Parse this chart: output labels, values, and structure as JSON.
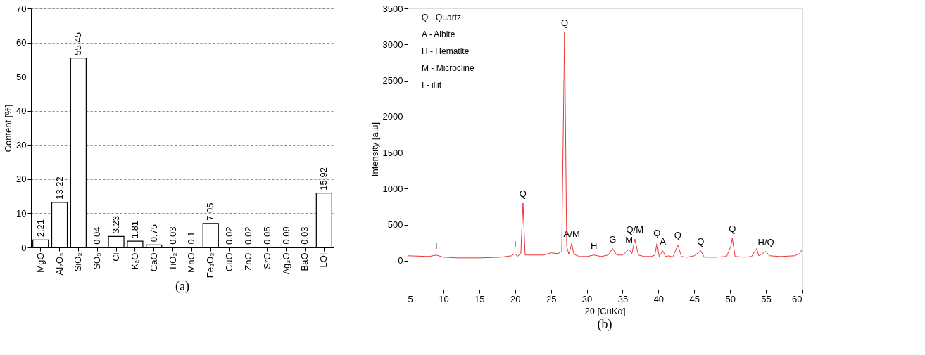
{
  "chart_data": [
    {
      "type": "bar",
      "title": "(a)",
      "ylabel": "Content [%]",
      "categories": [
        "MgO",
        "Al₂O₃",
        "SiO₂",
        "SO₃",
        "Cl",
        "K₂O",
        "CaO",
        "TiO₂",
        "MnO",
        "Fe₂O₃",
        "CuO",
        "ZnO",
        "SrO",
        "Ag₂O",
        "BaO",
        "LOI"
      ],
      "values": [
        2.21,
        13.22,
        55.45,
        0.04,
        3.23,
        1.81,
        0.75,
        0.03,
        0.1,
        7.05,
        0.02,
        0.02,
        0.05,
        0.09,
        0.03,
        15.92
      ],
      "color": "#ffffff",
      "data_labels": true,
      "ylim": [
        0,
        70
      ],
      "yticks": [
        0,
        10,
        20,
        30,
        40,
        50,
        60,
        70
      ],
      "grid": "y"
    },
    {
      "type": "line",
      "title": "(b)",
      "xlabel": "2θ [CuKα]",
      "ylabel": "Intensity [a.u]",
      "x": [
        5,
        8,
        9,
        10,
        12,
        15,
        18,
        19.5,
        20,
        20.3,
        20.8,
        21.1,
        21.4,
        22,
        24,
        25,
        26,
        26.5,
        26.9,
        27.2,
        27.5,
        27.9,
        28.2,
        29,
        30,
        31,
        31.5,
        32,
        33,
        33.6,
        34.2,
        35,
        35.9,
        36.3,
        36.7,
        37.2,
        38,
        39,
        39.5,
        39.8,
        40.1,
        40.6,
        41,
        41.5,
        42,
        42.7,
        43.2,
        44,
        45,
        45.9,
        46.4,
        48,
        49.5,
        50.1,
        50.3,
        50.7,
        52,
        53,
        53.7,
        54,
        55,
        55.5,
        57,
        59,
        59.7,
        60
      ],
      "series": [
        {
          "color": "#ee3333",
          "values": [
            70,
            60,
            80,
            50,
            40,
            40,
            50,
            70,
            100,
            60,
            100,
            800,
            80,
            80,
            80,
            110,
            100,
            130,
            3170,
            200,
            90,
            240,
            90,
            60,
            60,
            80,
            70,
            60,
            80,
            170,
            80,
            80,
            160,
            100,
            300,
            80,
            60,
            60,
            80,
            250,
            60,
            140,
            60,
            70,
            50,
            220,
            60,
            50,
            70,
            140,
            50,
            50,
            60,
            200,
            310,
            60,
            50,
            60,
            170,
            70,
            130,
            70,
            60,
            70,
            100,
            150
          ]
        }
      ],
      "xlim": [
        5,
        60
      ],
      "xticks": [
        5,
        10,
        15,
        20,
        25,
        30,
        35,
        40,
        45,
        50,
        55,
        60
      ],
      "ylim": [
        -400,
        3500
      ],
      "yticks": [
        0,
        500,
        1000,
        1500,
        2000,
        2500,
        3000,
        3500
      ],
      "grid": false,
      "annotations": [
        "Q - Quartz",
        "A - Albite",
        "H - Hematite",
        "M - Microcline",
        "I - illit",
        {
          "text": "I",
          "x": 9,
          "y": 80
        },
        {
          "text": "I",
          "x": 20,
          "y": 100
        },
        {
          "text": "Q",
          "x": 21.1,
          "y": 800
        },
        {
          "text": "Q",
          "x": 26.9,
          "y": 3170
        },
        {
          "text": "A/M",
          "x": 27.9,
          "y": 240
        },
        {
          "text": "H",
          "x": 31,
          "y": 80
        },
        {
          "text": "G",
          "x": 33.6,
          "y": 170
        },
        {
          "text": "M",
          "x": 35.9,
          "y": 160
        },
        {
          "text": "Q/M",
          "x": 36.7,
          "y": 300
        },
        {
          "text": "Q",
          "x": 39.8,
          "y": 250
        },
        {
          "text": "A",
          "x": 40.6,
          "y": 140
        },
        {
          "text": "Q",
          "x": 42.7,
          "y": 220
        },
        {
          "text": "Q",
          "x": 45.9,
          "y": 140
        },
        {
          "text": "Q",
          "x": 50.3,
          "y": 310
        },
        {
          "text": "H/Q",
          "x": 55,
          "y": 130
        }
      ]
    }
  ]
}
